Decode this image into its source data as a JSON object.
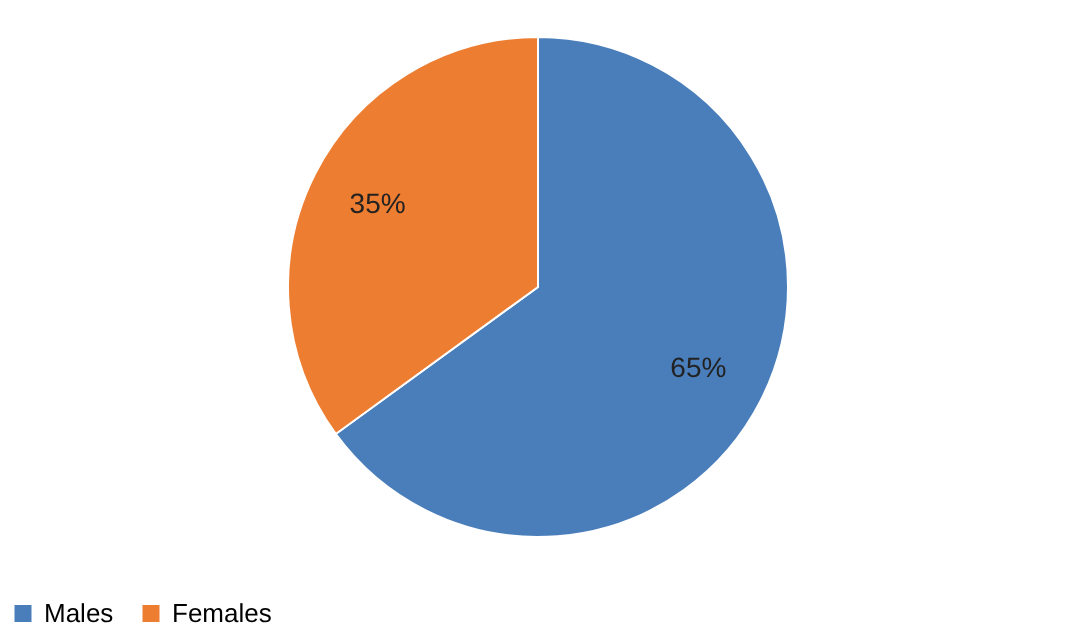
{
  "chart_data": {
    "type": "pie",
    "categories": [
      "Males",
      "Females"
    ],
    "values": [
      65,
      35
    ],
    "colors": [
      "#4a7ebb",
      "#ed7d31"
    ],
    "value_labels": [
      "65%",
      "35%"
    ],
    "legend": "bottom"
  }
}
